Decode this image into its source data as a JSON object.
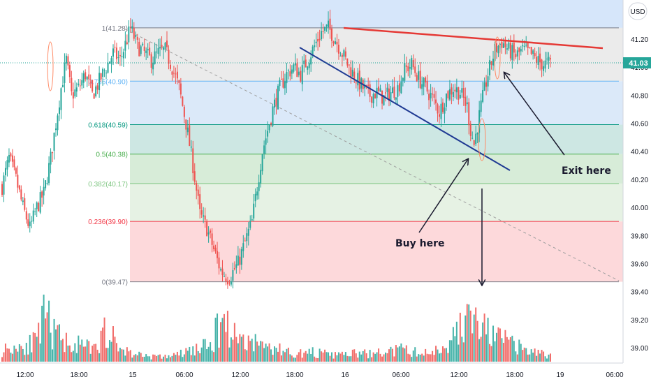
{
  "currency_button": "USD",
  "last_price_label": "41.03",
  "annotations": {
    "buy": "Buy here",
    "exit": "Exit here"
  },
  "colors": {
    "up": "#26a69a",
    "down": "#ef5350",
    "trendline_red": "#e53935",
    "trendline_blue": "#1f3a93",
    "dashed": "#9e9e9e",
    "arrows": "#1a1a2e"
  },
  "chart_data": {
    "type": "candlestick",
    "instrument_currency": "USD",
    "last_price": 41.03,
    "ylim": [
      38.9,
      41.5
    ],
    "y_ticks": [
      39.0,
      39.2,
      39.4,
      39.6,
      39.8,
      40.0,
      40.2,
      40.4,
      40.6,
      40.8,
      41.0,
      41.2
    ],
    "y_tick_labels": [
      "39.00",
      "39.20",
      "39.40",
      "39.60",
      "39.80",
      "40.00",
      "40.20",
      "40.40",
      "40.60",
      "40.80",
      "41.00",
      "41.20"
    ],
    "x_tick_labels": [
      "12:00",
      "18:00",
      "15",
      "06:00",
      "12:00",
      "18:00",
      "16",
      "06:00",
      "12:00",
      "18:00",
      "19",
      "06:00"
    ],
    "fibonacci": [
      {
        "ratio": "1",
        "price": 41.28,
        "label": "1(41.28)",
        "color": "#787b86"
      },
      {
        "ratio": "0.786",
        "price": 40.9,
        "label": "0.786(40.90)",
        "color": "#64b5f6"
      },
      {
        "ratio": "0.618",
        "price": 40.59,
        "label": "0.618(40.59)",
        "color": "#089981"
      },
      {
        "ratio": "0.5",
        "price": 40.38,
        "label": "0.5(40.38)",
        "color": "#4caf50"
      },
      {
        "ratio": "0.382",
        "price": 40.17,
        "label": "0.382(40.17)",
        "color": "#81c784"
      },
      {
        "ratio": "0.236",
        "price": 39.9,
        "label": "0.236(39.90)",
        "color": "#f23645"
      },
      {
        "ratio": "0",
        "price": 39.47,
        "label": "0(39.47)",
        "color": "#787b86"
      }
    ],
    "candle_path": [
      [
        0,
        40.15
      ],
      [
        4,
        40.35
      ],
      [
        8,
        40.2
      ],
      [
        12,
        40.0
      ],
      [
        16,
        39.85
      ],
      [
        20,
        40.0
      ],
      [
        24,
        40.1
      ],
      [
        28,
        40.35
      ],
      [
        31,
        40.6
      ],
      [
        34,
        40.85
      ],
      [
        37,
        41.05
      ],
      [
        40,
        40.8
      ],
      [
        44,
        40.85
      ],
      [
        48,
        40.95
      ],
      [
        52,
        40.8
      ],
      [
        56,
        40.9
      ],
      [
        60,
        41.0
      ],
      [
        64,
        41.1
      ],
      [
        68,
        41.05
      ],
      [
        72,
        41.2
      ],
      [
        74,
        41.28
      ],
      [
        78,
        41.15
      ],
      [
        82,
        41.1
      ],
      [
        86,
        41.05
      ],
      [
        90,
        41.1
      ],
      [
        94,
        41.12
      ],
      [
        98,
        41.0
      ],
      [
        102,
        40.85
      ],
      [
        106,
        40.6
      ],
      [
        110,
        40.3
      ],
      [
        114,
        39.95
      ],
      [
        118,
        39.85
      ],
      [
        122,
        39.7
      ],
      [
        126,
        39.55
      ],
      [
        130,
        39.5
      ],
      [
        132,
        39.52
      ],
      [
        136,
        39.6
      ],
      [
        140,
        39.75
      ],
      [
        144,
        39.9
      ],
      [
        147,
        40.15
      ],
      [
        150,
        40.4
      ],
      [
        153,
        40.55
      ],
      [
        156,
        40.7
      ],
      [
        160,
        40.85
      ],
      [
        164,
        40.95
      ],
      [
        168,
        41.0
      ],
      [
        172,
        40.95
      ],
      [
        176,
        41.05
      ],
      [
        180,
        41.15
      ],
      [
        184,
        41.25
      ],
      [
        188,
        41.28
      ],
      [
        192,
        41.2
      ],
      [
        196,
        41.1
      ],
      [
        200,
        41.0
      ],
      [
        204,
        40.92
      ],
      [
        208,
        40.85
      ],
      [
        212,
        40.8
      ],
      [
        216,
        40.82
      ],
      [
        220,
        40.78
      ],
      [
        224,
        40.82
      ],
      [
        228,
        40.85
      ],
      [
        232,
        40.98
      ],
      [
        236,
        41.02
      ],
      [
        240,
        40.92
      ],
      [
        244,
        40.85
      ],
      [
        248,
        40.78
      ],
      [
        252,
        40.68
      ],
      [
        256,
        40.8
      ],
      [
        260,
        40.85
      ],
      [
        264,
        40.82
      ],
      [
        268,
        40.72
      ],
      [
        270,
        40.55
      ],
      [
        272,
        40.45
      ],
      [
        276,
        40.72
      ],
      [
        280,
        40.95
      ],
      [
        284,
        41.12
      ],
      [
        288,
        41.18
      ],
      [
        292,
        41.12
      ],
      [
        296,
        41.08
      ],
      [
        300,
        41.12
      ],
      [
        304,
        41.1
      ],
      [
        308,
        41.05
      ],
      [
        312,
        41.02
      ],
      [
        316,
        41.03
      ]
    ],
    "volume_profile": [
      [
        0,
        0.15
      ],
      [
        10,
        0.2
      ],
      [
        20,
        0.25
      ],
      [
        25,
        0.6
      ],
      [
        30,
        0.35
      ],
      [
        38,
        0.25
      ],
      [
        45,
        0.2
      ],
      [
        55,
        0.15
      ],
      [
        60,
        0.45
      ],
      [
        66,
        0.2
      ],
      [
        75,
        0.1
      ],
      [
        90,
        0.06
      ],
      [
        100,
        0.08
      ],
      [
        110,
        0.15
      ],
      [
        120,
        0.2
      ],
      [
        125,
        0.45
      ],
      [
        128,
        0.6
      ],
      [
        132,
        0.35
      ],
      [
        138,
        0.3
      ],
      [
        145,
        0.25
      ],
      [
        152,
        0.2
      ],
      [
        160,
        0.15
      ],
      [
        170,
        0.1
      ],
      [
        180,
        0.12
      ],
      [
        190,
        0.08
      ],
      [
        200,
        0.1
      ],
      [
        215,
        0.1
      ],
      [
        230,
        0.15
      ],
      [
        245,
        0.1
      ],
      [
        255,
        0.2
      ],
      [
        262,
        0.35
      ],
      [
        268,
        0.55
      ],
      [
        272,
        0.5
      ],
      [
        278,
        0.4
      ],
      [
        285,
        0.3
      ],
      [
        292,
        0.25
      ],
      [
        300,
        0.15
      ],
      [
        316,
        0.08
      ]
    ]
  }
}
